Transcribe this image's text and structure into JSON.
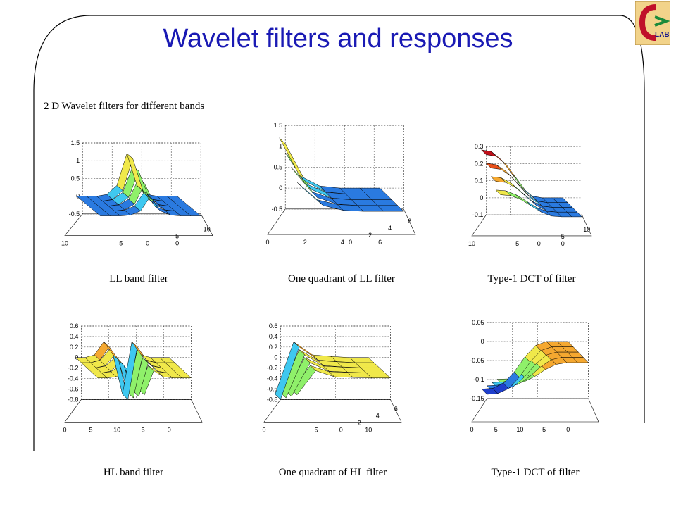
{
  "slide_title": "Wavelet filters and responses",
  "figure_heading": "2 D Wavelet filters for different bands",
  "logo_text": "LAB",
  "chart_data": [
    {
      "type": "surface",
      "title": "LL band filter",
      "zticks": [
        "1.5",
        "1",
        "0.5",
        "0",
        "-0.5"
      ],
      "zlim": [
        -0.5,
        1.5
      ],
      "xticks": [
        "10",
        "5",
        "0"
      ],
      "yticks": [
        "0",
        "5",
        "10"
      ],
      "peak": 1.2,
      "profile": [
        0,
        0,
        0,
        0.05,
        0.3,
        1.2,
        0.3,
        0.05,
        0,
        0,
        0
      ]
    },
    {
      "type": "surface",
      "title": "One quadrant of LL filter",
      "zticks": [
        "1.5",
        "1",
        "0.5",
        "0",
        "-0.5"
      ],
      "zlim": [
        -0.5,
        1.5
      ],
      "xticks": [
        "0",
        "2",
        "4",
        "6"
      ],
      "yticks": [
        "0",
        "2",
        "4",
        "6"
      ],
      "peak": 1.2,
      "profile": [
        1.2,
        0.3,
        0.05,
        0,
        0,
        0
      ]
    },
    {
      "type": "surface",
      "title": "Type-1 DCT of filter",
      "zticks": [
        "0.3",
        "0.2",
        "0.1",
        "0",
        "-0.1"
      ],
      "zlim": [
        -0.1,
        0.3
      ],
      "xticks": [
        "10",
        "5",
        "0"
      ],
      "yticks": [
        "0",
        "5",
        "10"
      ],
      "peak": 0.3,
      "profile": [
        0.28,
        0.27,
        0.22,
        0.14,
        0.06,
        0.01,
        0,
        0,
        0
      ]
    },
    {
      "type": "surface",
      "title": "HL band filter",
      "zticks": [
        "0.6",
        "0.4",
        "0.2",
        "0",
        "-0.2",
        "-0.4",
        "-0.6",
        "-0.8"
      ],
      "zlim": [
        -0.8,
        0.6
      ],
      "xticks": [
        "0",
        "5",
        "10",
        "5",
        "0"
      ],
      "yticks": [],
      "peak": 0.3,
      "trough": -0.7,
      "profile": [
        0,
        0,
        0.05,
        0.3,
        0.05,
        -0.7,
        0.3,
        0.05,
        0,
        0,
        0
      ]
    },
    {
      "type": "surface",
      "title": "One quadrant of HL filter",
      "zticks": [
        "0.6",
        "0.4",
        "0.2",
        "0",
        "-0.2",
        "-0.4",
        "-0.6",
        "-0.8"
      ],
      "zlim": [
        -0.8,
        0.6
      ],
      "xticks": [
        "0",
        "5",
        "10"
      ],
      "yticks": [
        "0",
        "2",
        "4",
        "6"
      ],
      "peak": 0.3,
      "trough": -0.7,
      "profile": [
        -0.7,
        0.3,
        0.05,
        0.02,
        0,
        0
      ]
    },
    {
      "type": "surface",
      "title": "Type-1 DCT of filter",
      "zticks": [
        "0.05",
        "0",
        "-0.05",
        "-0.1",
        "-0.15"
      ],
      "zlim": [
        -0.15,
        0.05
      ],
      "xticks": [
        "0",
        "5",
        "10",
        "5",
        "0"
      ],
      "yticks": [],
      "peak": 0,
      "trough": -0.125,
      "profile": [
        -0.125,
        -0.123,
        -0.11,
        -0.08,
        -0.04,
        -0.01,
        0,
        0,
        0
      ]
    }
  ]
}
